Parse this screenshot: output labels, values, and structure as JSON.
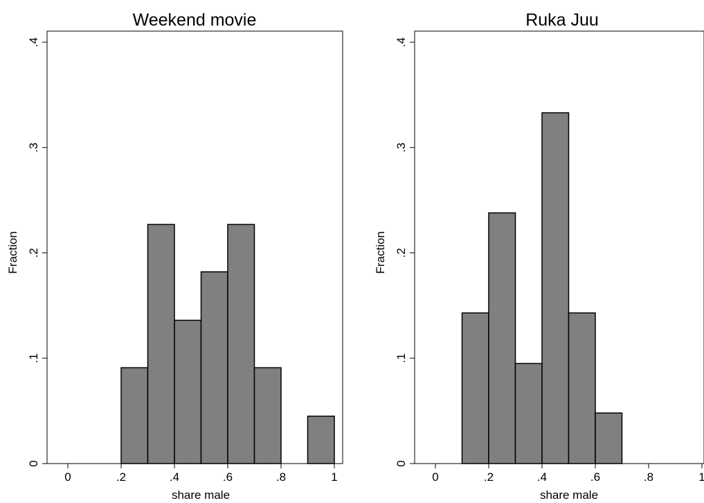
{
  "chart_data": [
    {
      "type": "bar",
      "title": "Weekend movie",
      "xlabel": "share male",
      "ylabel": "Fraction",
      "xlim": [
        -0.08,
        1.0
      ],
      "ylim": [
        0,
        0.4
      ],
      "xticks": [
        0,
        0.2,
        0.4,
        0.6,
        0.8,
        1
      ],
      "xtick_labels": [
        "0",
        ".2",
        ".4",
        ".6",
        ".8",
        "1"
      ],
      "yticks": [
        0,
        0.1,
        0.2,
        0.3,
        0.4
      ],
      "ytick_labels": [
        "0",
        ".1",
        ".2",
        ".3",
        ".4"
      ],
      "grid": false,
      "bin_width": 0.1,
      "bins": [
        {
          "x0": 0.2,
          "x1": 0.3,
          "value": 0.091
        },
        {
          "x0": 0.3,
          "x1": 0.4,
          "value": 0.227
        },
        {
          "x0": 0.4,
          "x1": 0.5,
          "value": 0.136
        },
        {
          "x0": 0.5,
          "x1": 0.6,
          "value": 0.182
        },
        {
          "x0": 0.6,
          "x1": 0.7,
          "value": 0.227
        },
        {
          "x0": 0.7,
          "x1": 0.8,
          "value": 0.091
        },
        {
          "x0": 0.9,
          "x1": 1.0,
          "value": 0.045
        }
      ],
      "bar_color": "#808080"
    },
    {
      "type": "bar",
      "title": "Ruka Juu",
      "xlabel": "share male",
      "ylabel": "Fraction",
      "xlim": [
        -0.08,
        1.0
      ],
      "ylim": [
        0,
        0.4
      ],
      "xticks": [
        0,
        0.2,
        0.4,
        0.6,
        0.8,
        1
      ],
      "xtick_labels": [
        "0",
        ".2",
        ".4",
        ".6",
        ".8",
        "1"
      ],
      "yticks": [
        0,
        0.1,
        0.2,
        0.3,
        0.4
      ],
      "ytick_labels": [
        "0",
        ".1",
        ".2",
        ".3",
        ".4"
      ],
      "grid": false,
      "bin_width": 0.1,
      "bins": [
        {
          "x0": 0.1,
          "x1": 0.2,
          "value": 0.143
        },
        {
          "x0": 0.2,
          "x1": 0.3,
          "value": 0.238
        },
        {
          "x0": 0.3,
          "x1": 0.4,
          "value": 0.095
        },
        {
          "x0": 0.4,
          "x1": 0.5,
          "value": 0.333
        },
        {
          "x0": 0.5,
          "x1": 0.6,
          "value": 0.143
        },
        {
          "x0": 0.6,
          "x1": 0.7,
          "value": 0.048
        }
      ],
      "bar_color": "#808080"
    }
  ]
}
